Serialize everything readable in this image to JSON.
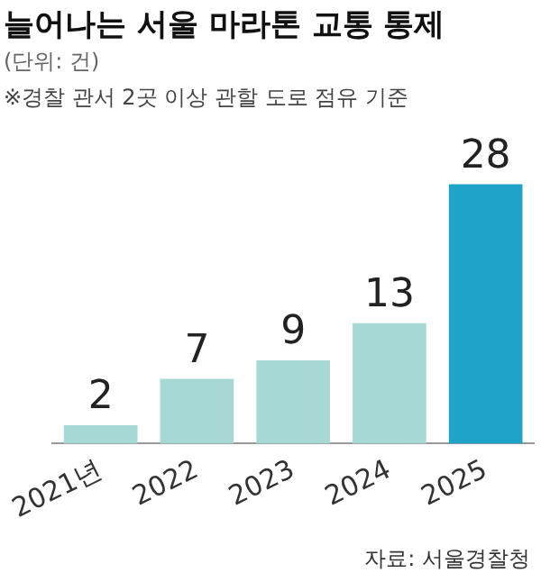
{
  "chart_data": {
    "type": "bar",
    "title": "늘어나는 서울 마라톤 교통 통제",
    "subtitle": "(단위: 건)",
    "annotations": [
      "※경찰 관서 2곳 이상 관할 도로 점유 기준",
      "자료: 서울경찰청"
    ],
    "categories": [
      "2021년",
      "2022",
      "2023",
      "2024",
      "2025"
    ],
    "values": [
      2,
      7,
      9,
      13,
      28
    ],
    "colors": [
      "#a6d9d6",
      "#a6d9d6",
      "#a6d9d6",
      "#a6d9d6",
      "#1fa3c9"
    ],
    "data_labels": true,
    "grid": false,
    "legend": false
  }
}
